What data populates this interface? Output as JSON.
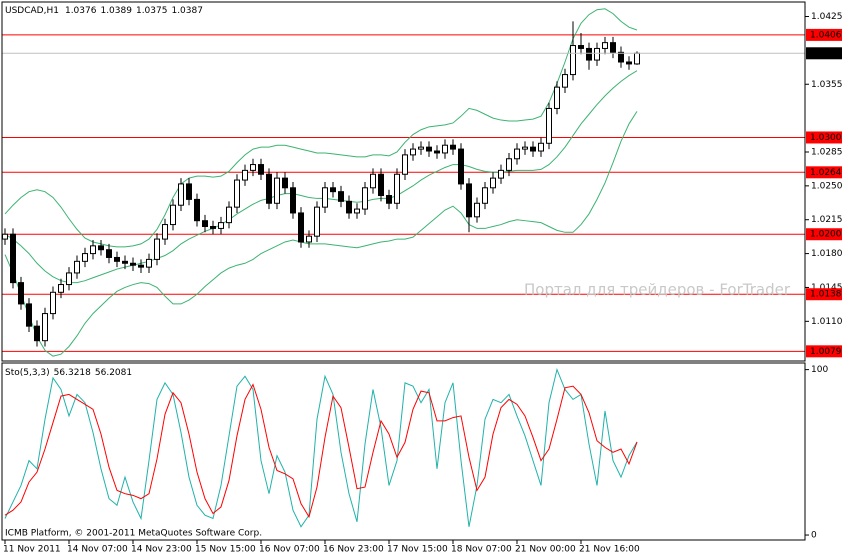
{
  "chart_data": [
    {
      "type": "candlestick",
      "title": "USDCAD,H1",
      "categories": [
        "11 Nov 2011",
        null,
        null,
        null,
        null,
        null,
        null,
        null,
        "14 Nov 07:00",
        null,
        null,
        null,
        null,
        null,
        null,
        null,
        "14 Nov 23:00",
        null,
        null,
        null,
        null,
        null,
        null,
        null,
        "15 Nov 15:00",
        null,
        null,
        null,
        null,
        null,
        null,
        null,
        "16 Nov 07:00",
        null,
        null,
        null,
        null,
        null,
        null,
        null,
        "16 Nov 23:00",
        null,
        null,
        null,
        null,
        null,
        null,
        null,
        "17 Nov 15:00",
        null,
        null,
        null,
        null,
        null,
        null,
        null,
        "18 Nov 07:00",
        null,
        null,
        null,
        null,
        null,
        null,
        null,
        "21 Nov 00:00",
        null,
        null,
        null,
        null,
        null,
        null,
        null,
        "21 Nov 16:00",
        null,
        null,
        null,
        null,
        null,
        null,
        null
      ],
      "open": [
        1.0195,
        1.02,
        1.015,
        1.0128,
        1.0105,
        1.009,
        1.0118,
        1.014,
        1.0148,
        1.016,
        1.0172,
        1.018,
        1.0188,
        1.0184,
        1.0176,
        1.0172,
        1.017,
        1.0168,
        1.0166,
        1.0174,
        1.0195,
        1.021,
        1.023,
        1.0252,
        1.0236,
        1.0214,
        1.0208,
        1.0206,
        1.0212,
        1.0228,
        1.0256,
        1.0266,
        1.0272,
        1.0262,
        1.0232,
        1.0258,
        1.0248,
        1.0222,
        1.0192,
        1.0198,
        1.0228,
        1.0248,
        1.0244,
        1.0234,
        1.0222,
        1.0226,
        1.0248,
        1.0262,
        1.024,
        1.0232,
        1.0262,
        1.0282,
        1.0288,
        1.029,
        1.0286,
        1.0284,
        1.0292,
        1.0288,
        1.0252,
        1.0218,
        1.0232,
        1.0248,
        1.0258,
        1.0266,
        1.0278,
        1.0288,
        1.029,
        1.0286,
        1.0294,
        1.033,
        1.0352,
        1.0365,
        1.0395,
        1.0392,
        1.038,
        1.0392,
        1.0398,
        1.0388,
        1.0378,
        1.0376
      ],
      "high": [
        1.0206,
        1.0206,
        1.0156,
        1.0134,
        1.0111,
        1.0124,
        1.0146,
        1.0154,
        1.0166,
        1.0178,
        1.0186,
        1.0194,
        1.0194,
        1.019,
        1.0182,
        1.0178,
        1.0176,
        1.0174,
        1.018,
        1.0201,
        1.0216,
        1.0236,
        1.0258,
        1.0258,
        1.0242,
        1.022,
        1.0214,
        1.0218,
        1.0234,
        1.0262,
        1.0272,
        1.0278,
        1.0278,
        1.0268,
        1.0264,
        1.0264,
        1.0254,
        1.0228,
        1.0204,
        1.0234,
        1.0254,
        1.0254,
        1.025,
        1.024,
        1.0232,
        1.0254,
        1.0268,
        1.0268,
        1.0246,
        1.0268,
        1.0288,
        1.0294,
        1.0296,
        1.0296,
        1.0292,
        1.0298,
        1.0298,
        1.0294,
        1.0258,
        1.0238,
        1.0254,
        1.0264,
        1.0272,
        1.0284,
        1.0294,
        1.0296,
        1.0296,
        1.03,
        1.0336,
        1.0358,
        1.0371,
        1.042,
        1.0408,
        1.0398,
        1.0398,
        1.0404,
        1.0404,
        1.0394,
        1.0384,
        1.0389
      ],
      "low": [
        1.0189,
        1.0144,
        1.0122,
        1.0099,
        1.0084,
        1.0084,
        1.0112,
        1.0134,
        1.0142,
        1.0154,
        1.0166,
        1.0174,
        1.0178,
        1.017,
        1.0166,
        1.0164,
        1.0162,
        1.016,
        1.016,
        1.0168,
        1.0189,
        1.0204,
        1.0224,
        1.023,
        1.0208,
        1.0202,
        1.02,
        1.02,
        1.0206,
        1.0222,
        1.025,
        1.026,
        1.0256,
        1.0226,
        1.0226,
        1.0242,
        1.0216,
        1.0186,
        1.0186,
        1.0192,
        1.0222,
        1.0238,
        1.0228,
        1.0216,
        1.0216,
        1.022,
        1.0242,
        1.0234,
        1.0226,
        1.0226,
        1.0256,
        1.0276,
        1.0282,
        1.028,
        1.0278,
        1.0278,
        1.0282,
        1.0246,
        1.0202,
        1.0212,
        1.0226,
        1.0242,
        1.0252,
        1.026,
        1.0272,
        1.0282,
        1.028,
        1.028,
        1.0288,
        1.0324,
        1.0346,
        1.0359,
        1.0386,
        1.037,
        1.0374,
        1.0386,
        1.0382,
        1.0372,
        1.037,
        1.0375
      ],
      "close": [
        1.02,
        1.015,
        1.0128,
        1.0105,
        1.009,
        1.0118,
        1.014,
        1.0148,
        1.016,
        1.0172,
        1.018,
        1.0188,
        1.0184,
        1.0176,
        1.0172,
        1.017,
        1.0168,
        1.0166,
        1.0174,
        1.0195,
        1.021,
        1.023,
        1.0252,
        1.0236,
        1.0214,
        1.0208,
        1.0206,
        1.0212,
        1.0228,
        1.0256,
        1.0266,
        1.0272,
        1.0262,
        1.0232,
        1.0258,
        1.0248,
        1.0222,
        1.0192,
        1.0198,
        1.0228,
        1.0248,
        1.0244,
        1.0234,
        1.0222,
        1.0226,
        1.0248,
        1.0262,
        1.024,
        1.0232,
        1.0262,
        1.0282,
        1.0288,
        1.029,
        1.0286,
        1.0284,
        1.0292,
        1.0288,
        1.0252,
        1.0218,
        1.0232,
        1.0248,
        1.0258,
        1.0266,
        1.0278,
        1.0288,
        1.029,
        1.0286,
        1.0294,
        1.033,
        1.0352,
        1.0365,
        1.0395,
        1.0392,
        1.038,
        1.0392,
        1.0398,
        1.0388,
        1.0378,
        1.0376,
        1.0387
      ],
      "color": "#000000",
      "series": [
        {
          "color": "#3cb371",
          "values": [
            1.0221,
            1.023,
            1.0238,
            1.0244,
            1.0246,
            1.0244,
            1.0238,
            1.0228,
            1.0216,
            1.0205,
            1.0196,
            1.0192,
            1.019,
            1.0188,
            1.0187,
            1.0187,
            1.0188,
            1.019,
            1.0195,
            1.0205,
            1.022,
            1.0238,
            1.0252,
            1.0258,
            1.026,
            1.026,
            1.0259,
            1.026,
            1.0265,
            1.0274,
            1.0282,
            1.0288,
            1.029,
            1.029,
            1.0292,
            1.0292,
            1.029,
            1.0288,
            1.0286,
            1.0284,
            1.0284,
            1.0283,
            1.0282,
            1.0281,
            1.028,
            1.028,
            1.0282,
            1.0282,
            1.0281,
            1.0285,
            1.0295,
            1.0303,
            1.0308,
            1.0311,
            1.0312,
            1.0313,
            1.0315,
            1.0322,
            1.033,
            1.0328,
            1.0324,
            1.032,
            1.0318,
            1.0317,
            1.0317,
            1.0318,
            1.0319,
            1.0322,
            1.0336,
            1.0356,
            1.0378,
            1.0402,
            1.0418,
            1.0427,
            1.0432,
            1.0433,
            1.0428,
            1.042,
            1.0414,
            1.0411
          ]
        },
        {
          "color": "#3cb371",
          "values": [
            1.02,
            1.0195,
            1.0188,
            1.018,
            1.017,
            1.0162,
            1.0156,
            1.0152,
            1.015,
            1.015,
            1.0152,
            1.0155,
            1.0158,
            1.0161,
            1.0164,
            1.0166,
            1.0168,
            1.017,
            1.0172,
            1.0175,
            1.0178,
            1.0183,
            1.019,
            1.0195,
            1.0199,
            1.0203,
            1.0206,
            1.021,
            1.0215,
            1.0221,
            1.0226,
            1.0231,
            1.0235,
            1.0237,
            1.024,
            1.0242,
            1.0242,
            1.024,
            1.0238,
            1.0237,
            1.0237,
            1.0236,
            1.0235,
            1.0234,
            1.0233,
            1.0234,
            1.0236,
            1.0237,
            1.0237,
            1.024,
            1.0245,
            1.025,
            1.0256,
            1.0261,
            1.0265,
            1.0269,
            1.0272,
            1.0272,
            1.027,
            1.0267,
            1.0265,
            1.0264,
            1.0264,
            1.0265,
            1.0266,
            1.0266,
            1.0266,
            1.0267,
            1.0272,
            1.028,
            1.029,
            1.0302,
            1.0314,
            1.0324,
            1.0334,
            1.0343,
            1.0351,
            1.0358,
            1.0364,
            1.0369
          ]
        },
        {
          "color": "#3cb371",
          "values": [
            1.0179,
            1.016,
            1.0138,
            1.0116,
            1.0094,
            1.008,
            1.0074,
            1.0076,
            1.0084,
            1.0095,
            1.0108,
            1.0118,
            1.0126,
            1.0134,
            1.0141,
            1.0145,
            1.0148,
            1.015,
            1.0149,
            1.0145,
            1.0136,
            1.0128,
            1.0128,
            1.0132,
            1.0138,
            1.0146,
            1.0153,
            1.016,
            1.0165,
            1.0168,
            1.017,
            1.0174,
            1.018,
            1.0184,
            1.0188,
            1.0192,
            1.0194,
            1.0192,
            1.019,
            1.019,
            1.019,
            1.0189,
            1.0188,
            1.0187,
            1.0186,
            1.0188,
            1.019,
            1.0192,
            1.0193,
            1.0195,
            1.0195,
            1.0197,
            1.0204,
            1.0211,
            1.0218,
            1.0225,
            1.0229,
            1.0222,
            1.021,
            1.0206,
            1.0206,
            1.0208,
            1.021,
            1.0213,
            1.0215,
            1.0214,
            1.0213,
            1.0212,
            1.0208,
            1.0204,
            1.0202,
            1.0202,
            1.021,
            1.0221,
            1.0236,
            1.0253,
            1.0274,
            1.0296,
            1.0314,
            1.0327
          ]
        }
      ],
      "levels": [
        1.0406,
        {
          "value": 1.03,
          "label": "1.0300"
        },
        1.0264,
        {
          "value": 1.02,
          "label": "1.0200"
        },
        1.0138,
        1.0079
      ],
      "level_color": "#ff0000",
      "ylim": [
        1.0069,
        1.044
      ],
      "yticks": [
        1.0425,
        1.0355,
        1.0285,
        {
          "value": 1.025,
          "label": "1.0250"
        },
        1.0215,
        {
          "value": 1.018,
          "label": "1.0180"
        },
        1.0145,
        {
          "value": 1.011,
          "label": "1.0110"
        }
      ],
      "annotation": "Портал для трейдеров - ForTrader"
    },
    {
      "type": "line",
      "title": "Sto(5,3,3)",
      "series": [
        {
          "color": "#20b2aa",
          "values": [
            10,
            20,
            30,
            45,
            40,
            70,
            95,
            88,
            72,
            85,
            80,
            62,
            40,
            22,
            18,
            35,
            20,
            10,
            45,
            82,
            92,
            85,
            62,
            35,
            18,
            12,
            10,
            30,
            60,
            90,
            96,
            88,
            45,
            25,
            48,
            38,
            15,
            5,
            12,
            70,
            96,
            85,
            50,
            25,
            8,
            55,
            88,
            65,
            30,
            45,
            92,
            90,
            80,
            88,
            40,
            80,
            92,
            45,
            5,
            30,
            70,
            82,
            80,
            85,
            72,
            60,
            45,
            30,
            80,
            100,
            88,
            82,
            85,
            55,
            30,
            75,
            45,
            35,
            48,
            56.3218
          ]
        },
        {
          "color": "#ff0000",
          "values": [
            12,
            15,
            20,
            32,
            38,
            52,
            68,
            84,
            85,
            82,
            79,
            76,
            61,
            41,
            27,
            25,
            24,
            22,
            25,
            46,
            73,
            86,
            80,
            61,
            38,
            22,
            13,
            17,
            33,
            60,
            82,
            91,
            76,
            53,
            39,
            37,
            34,
            19,
            11,
            29,
            59,
            84,
            77,
            53,
            28,
            29,
            50,
            69,
            61,
            47,
            56,
            76,
            87,
            86,
            69,
            69,
            71,
            72,
            47,
            27,
            35,
            61,
            77,
            82,
            79,
            72,
            59,
            45,
            52,
            70,
            89,
            90,
            85,
            74,
            57,
            53,
            50,
            52,
            43,
            56.2081
          ]
        }
      ],
      "ylim": [
        -3,
        104
      ],
      "yticks": [
        0,
        100
      ],
      "annotation": "ICMB Platform, © 2001-2011 MetaQuotes Software Corp."
    }
  ]
}
